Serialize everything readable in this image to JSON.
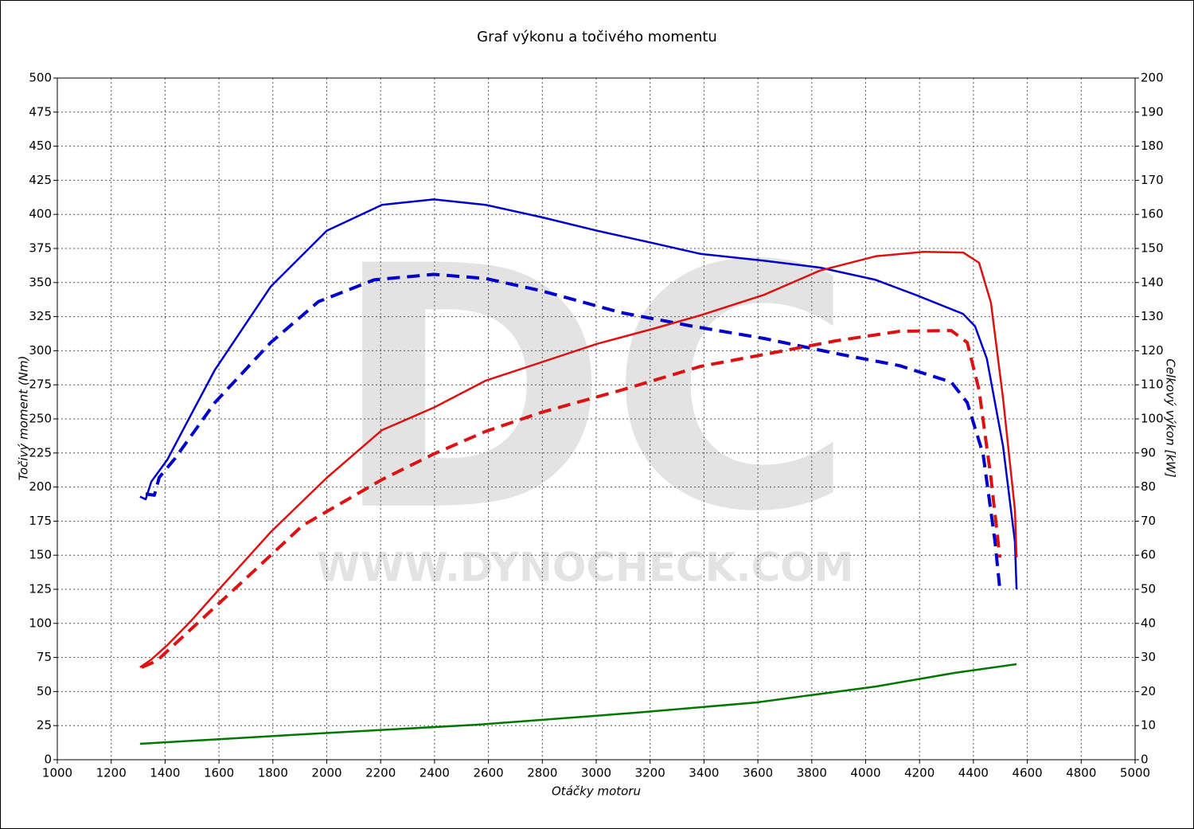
{
  "chart_data": {
    "type": "line",
    "title": "Graf výkonu a točivého momentu",
    "xlabel": "Otáčky motoru",
    "ylabel": "Točivý moment (Nm)",
    "y2label": "Celkový výkon [kW]",
    "watermark": "DC",
    "watermark_url": "WWW.DYNOCHECK.COM",
    "grid": true,
    "xlim": [
      1000,
      5000
    ],
    "xticks": [
      1000,
      1200,
      1400,
      1600,
      1800,
      2000,
      2200,
      2400,
      2600,
      2800,
      3000,
      3200,
      3400,
      3600,
      3800,
      4000,
      4200,
      4400,
      4600,
      4800,
      5000
    ],
    "ylim": [
      0,
      500
    ],
    "yticks": [
      0,
      25,
      50,
      75,
      100,
      125,
      150,
      175,
      200,
      225,
      250,
      275,
      300,
      325,
      350,
      375,
      400,
      425,
      450,
      475,
      500
    ],
    "y2lim": [
      0,
      200
    ],
    "y2ticks": [
      0,
      10,
      20,
      30,
      40,
      50,
      60,
      70,
      80,
      90,
      100,
      110,
      120,
      130,
      140,
      150,
      160,
      170,
      180,
      190,
      200
    ],
    "series": [
      {
        "color": "#0000cc",
        "dash": false,
        "axis": "y",
        "x": [
          1307,
          1328,
          1349,
          1408,
          1496,
          1585,
          1792,
          2000,
          2205,
          2397,
          2589,
          2796,
          3003,
          3210,
          3387,
          3623,
          3830,
          4037,
          4185,
          4362,
          4406,
          4450,
          4510,
          4554,
          4560
        ],
        "values": [
          193,
          191,
          204,
          220,
          253,
          286,
          347,
          388,
          407,
          411,
          407,
          398,
          388,
          379,
          371,
          366,
          361,
          352,
          341,
          327,
          318,
          294,
          230,
          160,
          125
        ]
      },
      {
        "color": "#0000cc",
        "dash": true,
        "axis": "y",
        "x": [
          1328,
          1360,
          1378,
          1437,
          1585,
          1792,
          1969,
          2176,
          2397,
          2589,
          2796,
          3092,
          3357,
          3623,
          3889,
          4126,
          4318,
          4377,
          4436,
          4480,
          4498
        ],
        "values": [
          195,
          194,
          207,
          221,
          262,
          306,
          336,
          352,
          356,
          353,
          344,
          328,
          318,
          309,
          298,
          289,
          277,
          262,
          224,
          160,
          125
        ]
      },
      {
        "color": "#dd1111",
        "dash": false,
        "axis": "y2",
        "x": [
          1307,
          1349,
          1408,
          1496,
          1614,
          1792,
          2000,
          2205,
          2397,
          2589,
          2796,
          3003,
          3210,
          3387,
          3623,
          3830,
          4037,
          4214,
          4362,
          4421,
          4465,
          4510,
          4554,
          4560
        ],
        "values": [
          27.1,
          29.4,
          33.6,
          40.7,
          51.2,
          66.8,
          82.7,
          96.7,
          103.3,
          111.2,
          116.6,
          122,
          126.4,
          130.4,
          136.4,
          143.5,
          147.7,
          149,
          148.8,
          145.8,
          134.1,
          106,
          73.4,
          59.3
        ]
      },
      {
        "color": "#dd1111",
        "dash": true,
        "axis": "y2",
        "x": [
          1313,
          1369,
          1496,
          1673,
          1910,
          2205,
          2397,
          2589,
          2796,
          3092,
          3387,
          3623,
          3889,
          4126,
          4318,
          4377,
          4421,
          4465,
          4498
        ],
        "values": [
          27.1,
          29,
          38.3,
          51.2,
          68.7,
          82.2,
          89.7,
          96.3,
          101.9,
          108.4,
          115.4,
          118.9,
          122.9,
          125.7,
          125.9,
          122.4,
          108.4,
          82.7,
          59.3
        ]
      },
      {
        "color": "#007700",
        "dash": false,
        "axis": "y",
        "x": [
          1307,
          1969,
          2560,
          3151,
          3594,
          4037,
          4332,
          4560
        ],
        "values": [
          11.7,
          19.3,
          25.7,
          34.5,
          42,
          53.7,
          63.7,
          70.1
        ]
      }
    ]
  }
}
